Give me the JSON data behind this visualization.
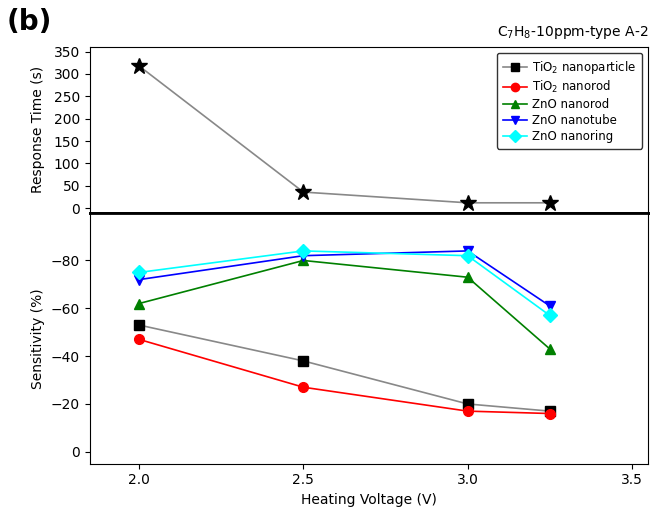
{
  "title_annotation": "C$_7$H$_8$-10ppm-type A-2",
  "label_b": "(b)",
  "x_values": [
    2.0,
    2.5,
    3.0,
    3.25
  ],
  "x_label": "Heating Voltage (V)",
  "x_lim": [
    1.85,
    3.55
  ],
  "x_ticks": [
    2.0,
    2.5,
    3.0,
    3.5
  ],
  "response_time": {
    "ylabel": "Response Time (s)",
    "ylim": [
      -10,
      360
    ],
    "yticks": [
      0,
      50,
      100,
      150,
      200,
      250,
      300,
      350
    ],
    "series": {
      "TiO2_nanoparticle": {
        "y": [
          318,
          36,
          12,
          12
        ],
        "color": "black",
        "marker": "*",
        "markersize": 12,
        "linecolor": "#888888",
        "label": "TiO$_2$ nanoparticle"
      }
    }
  },
  "sensitivity": {
    "ylabel": "Sensitivity (%)",
    "ylim": [
      -100,
      5
    ],
    "yticks": [
      -80,
      -60,
      -40,
      -20,
      0
    ],
    "series": {
      "TiO2_nanoparticle": {
        "y": [
          -53,
          -38,
          -20,
          -17
        ],
        "color": "black",
        "linecolor": "#888888",
        "marker": "s",
        "markersize": 7,
        "label": "TiO$_2$ nanoparticle"
      },
      "TiO2_nanorod": {
        "y": [
          -47,
          -27,
          -17,
          -16
        ],
        "color": "red",
        "linecolor": "red",
        "marker": "o",
        "markersize": 7,
        "label": "TiO$_2$ nanorod"
      },
      "ZnO_nanorod": {
        "y": [
          -62,
          -80,
          -73,
          -43
        ],
        "color": "green",
        "linecolor": "green",
        "marker": "^",
        "markersize": 7,
        "label": "ZnO nanorod"
      },
      "ZnO_nanotube": {
        "y": [
          -72,
          -82,
          -84,
          -61
        ],
        "color": "blue",
        "linecolor": "blue",
        "marker": "v",
        "markersize": 7,
        "label": "ZnO nanotube"
      },
      "ZnO_nanoring": {
        "y": [
          -75,
          -84,
          -82,
          -57
        ],
        "color": "cyan",
        "linecolor": "cyan",
        "marker": "D",
        "markersize": 7,
        "label": "ZnO nanoring"
      }
    }
  },
  "legend_series": [
    {
      "label": "TiO$_2$ nanoparticle",
      "color": "black",
      "linecolor": "#888888",
      "marker": "s"
    },
    {
      "label": "TiO$_2$ nanorod",
      "color": "red",
      "linecolor": "red",
      "marker": "o"
    },
    {
      "label": "ZnO nanorod",
      "color": "green",
      "linecolor": "green",
      "marker": "^"
    },
    {
      "label": "ZnO nanotube",
      "color": "blue",
      "linecolor": "blue",
      "marker": "v"
    },
    {
      "label": "ZnO nanoring",
      "color": "cyan",
      "linecolor": "cyan",
      "marker": "D"
    }
  ],
  "bg_color": "white",
  "fig_width": 6.65,
  "fig_height": 5.24
}
